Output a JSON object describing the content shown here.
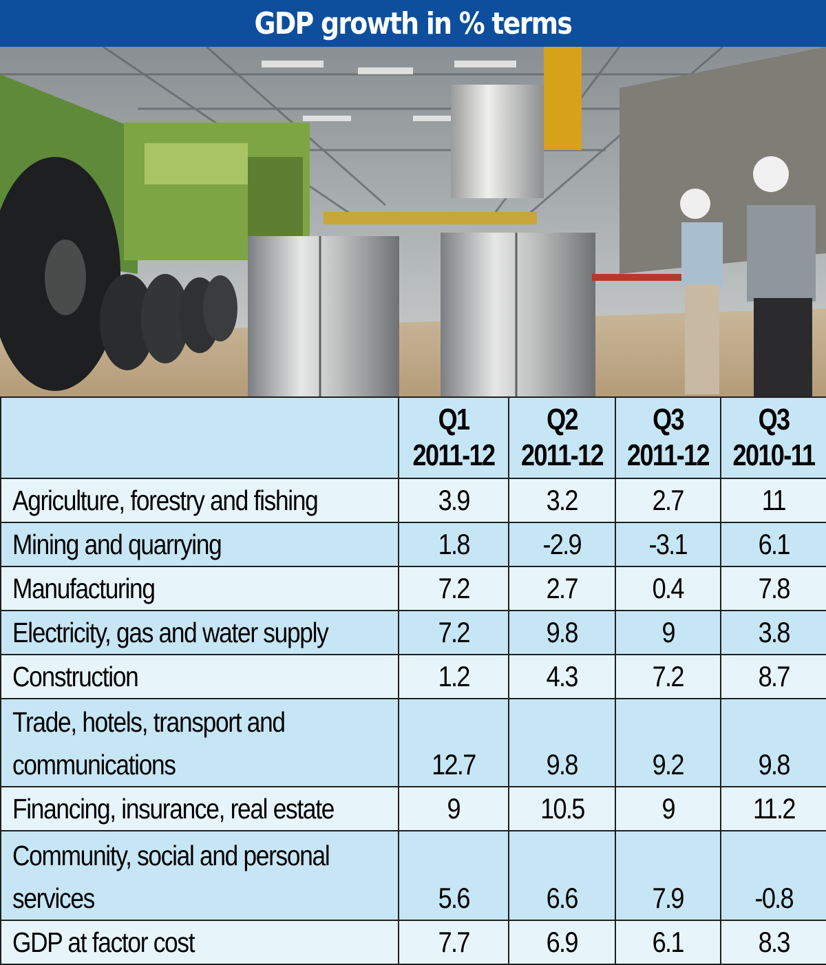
{
  "title": "GDP growth in % terms",
  "chart_data": {
    "type": "table",
    "columns": [
      "Q1 2011-12",
      "Q2 2011-12",
      "Q3 2011-12",
      "Q3 2010-11"
    ],
    "column_lines": [
      [
        "Q1",
        "2011-12"
      ],
      [
        "Q2",
        "2011-12"
      ],
      [
        "Q3",
        "2011-12"
      ],
      [
        "Q3",
        "2010-11"
      ]
    ],
    "rows": [
      {
        "lines": [
          "Agriculture, forestry and fishing"
        ],
        "values": [
          "3.9",
          "3.2",
          "2.7",
          "11"
        ]
      },
      {
        "lines": [
          "Mining and quarrying"
        ],
        "values": [
          "1.8",
          "-2.9",
          "-3.1",
          "6.1"
        ]
      },
      {
        "lines": [
          "Manufacturing"
        ],
        "values": [
          "7.2",
          "2.7",
          "0.4",
          "7.8"
        ]
      },
      {
        "lines": [
          "Electricity, gas and water supply"
        ],
        "values": [
          "7.2",
          "9.8",
          "9",
          "3.8"
        ]
      },
      {
        "lines": [
          "Construction"
        ],
        "values": [
          "1.2",
          "4.3",
          "7.2",
          "8.7"
        ]
      },
      {
        "lines": [
          "Trade, hotels, transport and",
          "communications"
        ],
        "values": [
          "12.7",
          "9.8",
          "9.2",
          "9.8"
        ]
      },
      {
        "lines": [
          "Financing, insurance, real estate"
        ],
        "values": [
          "9",
          "10.5",
          "9",
          "11.2"
        ]
      },
      {
        "lines": [
          "Community, social and personal",
          "services"
        ],
        "values": [
          "5.6",
          "6.6",
          "7.9",
          "-0.8"
        ]
      },
      {
        "lines": [
          "GDP at factor cost"
        ],
        "values": [
          "7.7",
          "6.9",
          "6.1",
          "8.3"
        ]
      }
    ]
  },
  "colors": {
    "title_background": "#0d4f9c",
    "header_row": "#c7e6f5",
    "row_blue": "#c7e6f5",
    "row_light": "#e7f5fb"
  }
}
